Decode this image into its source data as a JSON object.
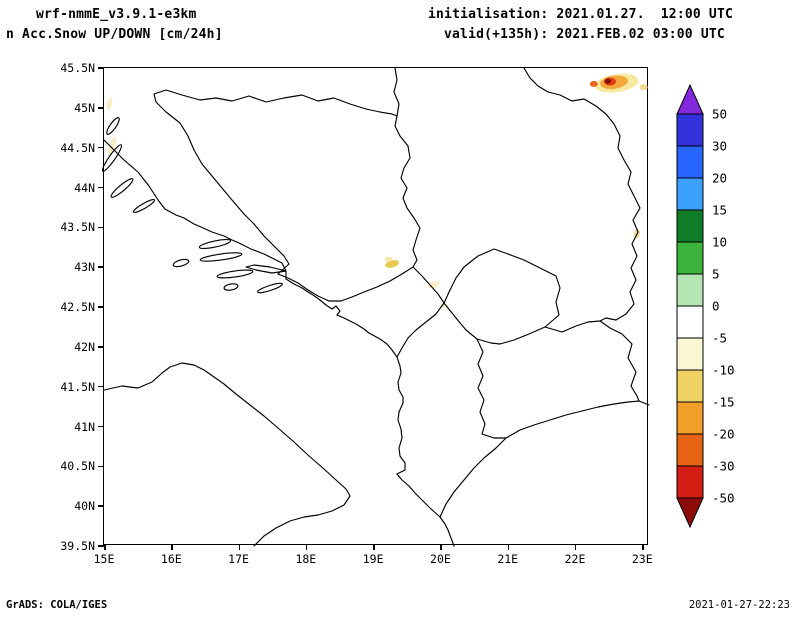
{
  "header": {
    "model_title": "wrf-nmmE_v3.9.1-e3km",
    "field_title": "n Acc.Snow UP/DOWN [cm/24h]",
    "init_line": "initialisation: 2021.01.27.  12:00 UTC",
    "valid_line": "valid(+135h): 2021.FEB.02 03:00 UTC"
  },
  "footer": {
    "credit": "GrADS: COLA/IGES",
    "timestamp": "2021-01-27-22:23"
  },
  "chart_data": {
    "type": "heatmap",
    "x_axis": {
      "ticks": [
        "15E",
        "16E",
        "17E",
        "18E",
        "19E",
        "20E",
        "21E",
        "22E",
        "23E"
      ],
      "values": [
        15,
        16,
        17,
        18,
        19,
        20,
        21,
        22,
        23
      ],
      "range": [
        15,
        23.1
      ]
    },
    "y_axis": {
      "ticks": [
        "45.5N",
        "45N",
        "44.5N",
        "44N",
        "43.5N",
        "43N",
        "42.5N",
        "42N",
        "41.5N",
        "41N",
        "40.5N",
        "40N",
        "39.5N"
      ],
      "values": [
        45.5,
        45,
        44.5,
        44,
        43.5,
        43,
        42.5,
        42,
        41.5,
        41,
        40.5,
        40,
        39.5
      ],
      "range": [
        39.5,
        45.5
      ]
    },
    "colorbar": {
      "unit": "cm/24h",
      "labels": [
        "50",
        "30",
        "20",
        "15",
        "10",
        "5",
        "0",
        "-5",
        "-10",
        "-15",
        "-20",
        "-30",
        "-50"
      ],
      "segment_colors_top_to_bottom": [
        "#3232dc",
        "#2864ff",
        "#3ca0ff",
        "#0f7d28",
        "#3cb43c",
        "#b4e6b4",
        "#ffffff",
        "#faf5d2",
        "#f0d264",
        "#f0a028",
        "#e66414",
        "#d21e14"
      ],
      "arrow_top_color": "#8228dc",
      "arrow_bottom_color": "#8c0a0a"
    },
    "spots": [
      {
        "lon": 22.62,
        "lat": 45.31,
        "rx": 22,
        "ry": 9,
        "rot": -8,
        "color": "#f7e8a0"
      },
      {
        "lon": 22.58,
        "lat": 45.32,
        "rx": 14,
        "ry": 6.5,
        "rot": -8,
        "color": "#f2a93b"
      },
      {
        "lon": 22.52,
        "lat": 45.33,
        "rx": 6,
        "ry": 4,
        "rot": 0,
        "color": "#e23b17"
      },
      {
        "lon": 22.49,
        "lat": 45.335,
        "rx": 3,
        "ry": 2.5,
        "rot": 0,
        "color": "#7e120b"
      },
      {
        "lon": 22.28,
        "lat": 45.3,
        "rx": 4,
        "ry": 3,
        "rot": 0,
        "color": "#e8651f"
      },
      {
        "lon": 23.02,
        "lat": 45.26,
        "rx": 4,
        "ry": 3,
        "rot": 0,
        "color": "#f3d98e"
      },
      {
        "lon": 19.28,
        "lat": 43.04,
        "rx": 7,
        "ry": 3.5,
        "rot": -15,
        "color": "#e8c84f"
      },
      {
        "lon": 19.23,
        "lat": 43.1,
        "rx": 4,
        "ry": 2.5,
        "rot": 0,
        "color": "#f3e6ae"
      },
      {
        "lon": 19.9,
        "lat": 42.78,
        "rx": 6,
        "ry": 3,
        "rot": -20,
        "color": "#f6eec6"
      },
      {
        "lon": 15.12,
        "lat": 44.52,
        "rx": 3,
        "ry": 10,
        "rot": 20,
        "color": "#f6efc9"
      },
      {
        "lon": 15.08,
        "lat": 45.05,
        "rx": 2.5,
        "ry": 6,
        "rot": 15,
        "color": "#f6efc9"
      },
      {
        "lon": 22.92,
        "lat": 43.42,
        "rx": 3,
        "ry": 5,
        "rot": 0,
        "color": "#f3e0a0"
      },
      {
        "lon": 20.05,
        "lat": 42.52,
        "rx": 3,
        "ry": 2.5,
        "rot": 0,
        "color": "#f6eec6"
      }
    ]
  }
}
